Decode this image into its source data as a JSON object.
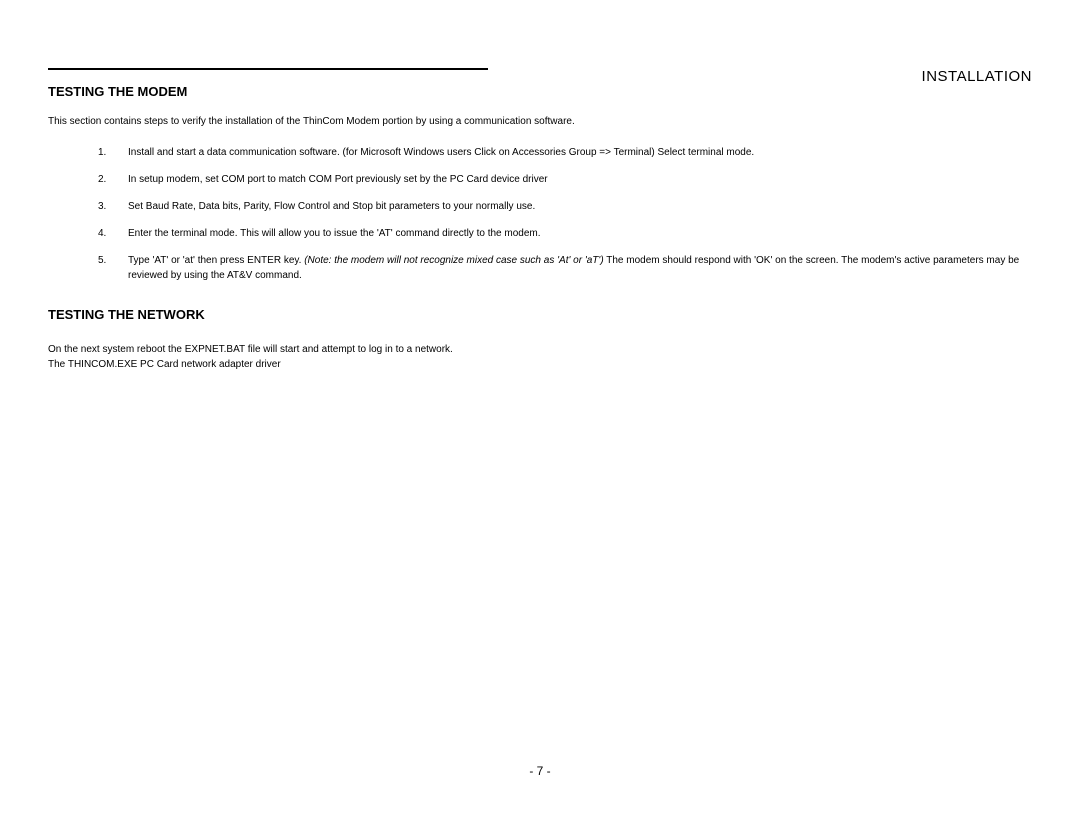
{
  "chapter_title": "INSTALLATION",
  "section1": {
    "heading": "TESTING THE MODEM",
    "intro": "This section contains steps to verify the installation of the ThinCom Modem portion by using a communication software.",
    "items": [
      {
        "num": "1.",
        "text": "Install and start a data communication software. (for Microsoft  Windows users Click on Accessories Group => Terminal) Select terminal mode."
      },
      {
        "num": "2.",
        "text": "In setup modem, set COM port to match COM Port previously set by the PC Card device driver"
      },
      {
        "num": "3.",
        "text": "Set Baud Rate, Data bits, Parity, Flow Control and Stop bit parameters to your normally use."
      },
      {
        "num": "4.",
        "text": "Enter the terminal mode. This will allow you to issue the 'AT' command directly to the modem."
      },
      {
        "num": "5.",
        "text_pre": "Type 'AT' or 'at'  then press ENTER key.  ",
        "text_italic": "(Note: the modem will not recognize mixed case such as 'At' or 'aT')",
        "text_post": "  The modem should respond with 'OK' on the screen. The modem's active parameters may be reviewed by using the AT&V command."
      }
    ]
  },
  "section2": {
    "heading": "TESTING THE NETWORK",
    "line1": "On the next system reboot the EXPNET.BAT file will start and attempt to log in to a network.",
    "line2": "The THINCOM.EXE PC Card network adapter driver"
  },
  "page_number": "-  7  -"
}
